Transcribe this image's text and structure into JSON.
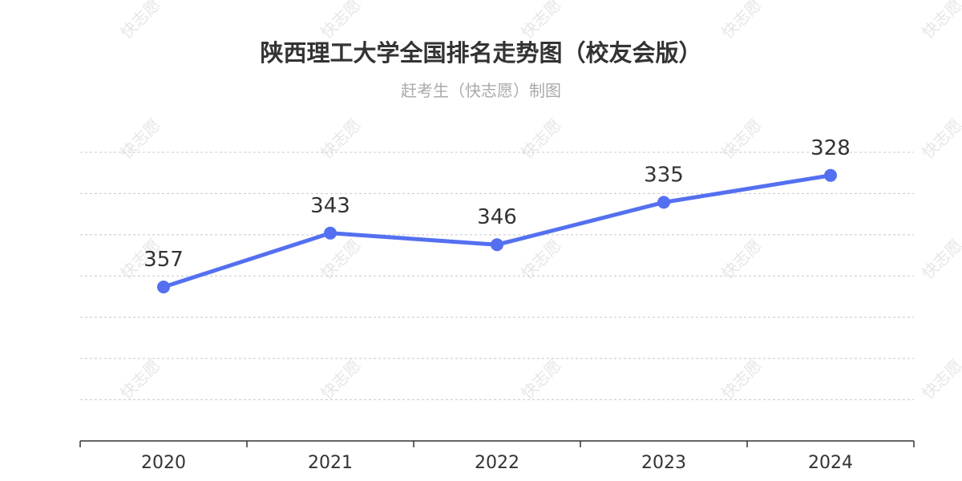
{
  "watermark_text": "快志愿",
  "chart_data": {
    "type": "line",
    "title": "陕西理工大学全国排名走势图（校友会版）",
    "subtitle": "赶考生（快志愿）制图",
    "categories": [
      "2020",
      "2021",
      "2022",
      "2023",
      "2024"
    ],
    "values": [
      357,
      343,
      346,
      335,
      328
    ],
    "xlabel": "",
    "ylabel": "",
    "y_inverted": true,
    "ylim": [
      397,
      322
    ],
    "grid": true,
    "line_color": "#5470f0",
    "grid_color": "#c8c8c8",
    "axis_color": "#333333"
  }
}
